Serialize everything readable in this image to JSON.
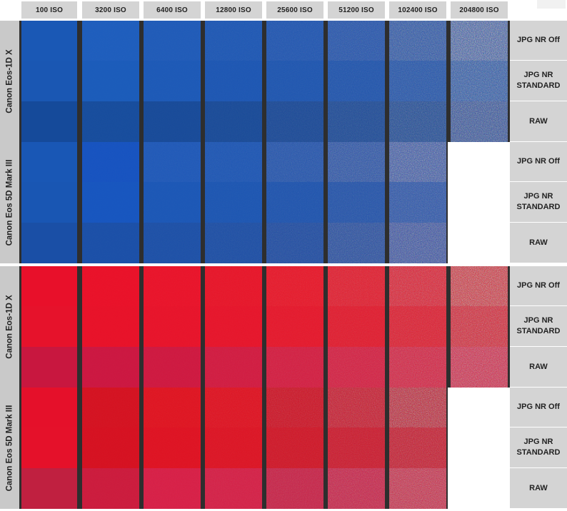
{
  "iso_columns": [
    "100 ISO",
    "3200 ISO",
    "6400 ISO",
    "12800 ISO",
    "25600 ISO",
    "51200 ISO",
    "102400 ISO",
    "204800 ISO"
  ],
  "groups": [
    {
      "id": "blue",
      "cameras": [
        {
          "name": "Canon Eos-1D X",
          "modes": [
            "JPG NR Off",
            "JPG NR\nSTANDARD",
            "RAW"
          ],
          "noise": [
            [
              0,
              0.02,
              0.04,
              0.08,
              0.14,
              0.25,
              0.45,
              0.75
            ],
            [
              0,
              0.01,
              0.02,
              0.04,
              0.08,
              0.14,
              0.28,
              0.55
            ],
            [
              0,
              0.02,
              0.03,
              0.06,
              0.12,
              0.2,
              0.35,
              0.6
            ]
          ],
          "colors": [
            [
              "#1a58b5",
              "#1d5dbd",
              "#1e5ab8",
              "#1d57b4",
              "#1f55b1",
              "#2253ad",
              "#2552a8",
              "#2d52a8"
            ],
            [
              "#1a57b3",
              "#1b5cba",
              "#1c59b7",
              "#1c56b3",
              "#1d55b0",
              "#1f54ad",
              "#2254ab",
              "#2453a9"
            ],
            [
              "#154a9a",
              "#164c9d",
              "#174a99",
              "#184a98",
              "#1a4997",
              "#1c4a97",
              "#1e4a96",
              "#27499a"
            ]
          ]
        },
        {
          "name": "Canon Eos 5D Mark III",
          "modes": [
            "JPG NR Off",
            "JPG NR\nSTANDARD",
            "RAW"
          ],
          "noise": [
            [
              0,
              0.03,
              0.06,
              0.1,
              0.2,
              0.35,
              0.6,
              null
            ],
            [
              0,
              0.01,
              0.02,
              0.05,
              0.1,
              0.18,
              0.35,
              null
            ],
            [
              0,
              0.02,
              0.05,
              0.1,
              0.18,
              0.32,
              0.55,
              null
            ]
          ],
          "colors": [
            [
              "#1957b5",
              "#1552c0",
              "#1e58b8",
              "#1d56b4",
              "#2354ad",
              "#2852a8",
              "#3050a8",
              null
            ],
            [
              "#1956b3",
              "#1756bf",
              "#1b57b6",
              "#1b55b2",
              "#1d53ae",
              "#2152aa",
              "#2752aa",
              null
            ],
            [
              "#1a4fa6",
              "#1a4fa8",
              "#1b4fa7",
              "#1c4ea5",
              "#1f4ca2",
              "#244ca0",
              "#2f4aa2",
              null
            ]
          ]
        }
      ]
    },
    {
      "id": "red",
      "cameras": [
        {
          "name": "Canon Eos-1D X",
          "modes": [
            "JPG NR Off",
            "JPG NR\nSTANDARD",
            "RAW"
          ],
          "noise": [
            [
              0,
              0.02,
              0.04,
              0.06,
              0.12,
              0.22,
              0.4,
              0.7
            ],
            [
              0,
              0.01,
              0.02,
              0.04,
              0.08,
              0.14,
              0.26,
              0.5
            ],
            [
              0,
              0.02,
              0.04,
              0.07,
              0.12,
              0.2,
              0.34,
              0.55
            ]
          ],
          "colors": [
            [
              "#e8102a",
              "#ea1028",
              "#ea1229",
              "#e81428",
              "#e81628",
              "#e31a2c",
              "#df1c30",
              "#d8202e"
            ],
            [
              "#e6122b",
              "#e81229",
              "#e8132a",
              "#e7142a",
              "#e6162a",
              "#e2192c",
              "#df1b2e",
              "#d81d30"
            ],
            [
              "#c8173f",
              "#cc1640",
              "#cf173f",
              "#d2193f",
              "#d41b3f",
              "#d51d40",
              "#d61f40",
              "#d62044"
            ]
          ]
        },
        {
          "name": "Canon Eos 5D Mark III",
          "modes": [
            "JPG NR Off",
            "JPG NR\nSTANDARD",
            "RAW"
          ],
          "noise": [
            [
              0,
              0.04,
              0.06,
              0.1,
              0.2,
              0.35,
              0.6,
              null
            ],
            [
              0,
              0.02,
              0.03,
              0.06,
              0.12,
              0.2,
              0.35,
              null
            ],
            [
              0,
              0.03,
              0.05,
              0.1,
              0.2,
              0.32,
              0.5,
              null
            ]
          ],
          "colors": [
            [
              "#e5102a",
              "#d5101f",
              "#e0121f",
              "#df1221",
              "#cd1224",
              "#c9152a",
              "#c0152a",
              null
            ],
            [
              "#e5112a",
              "#d61020",
              "#df1222",
              "#dd1323",
              "#d01425",
              "#cc162a",
              "#c7172c",
              null
            ],
            [
              "#c02040",
              "#cc1a3c",
              "#d81d45",
              "#d51e45",
              "#c81e44",
              "#c91f46",
              "#cb2443",
              null
            ]
          ]
        }
      ]
    }
  ]
}
